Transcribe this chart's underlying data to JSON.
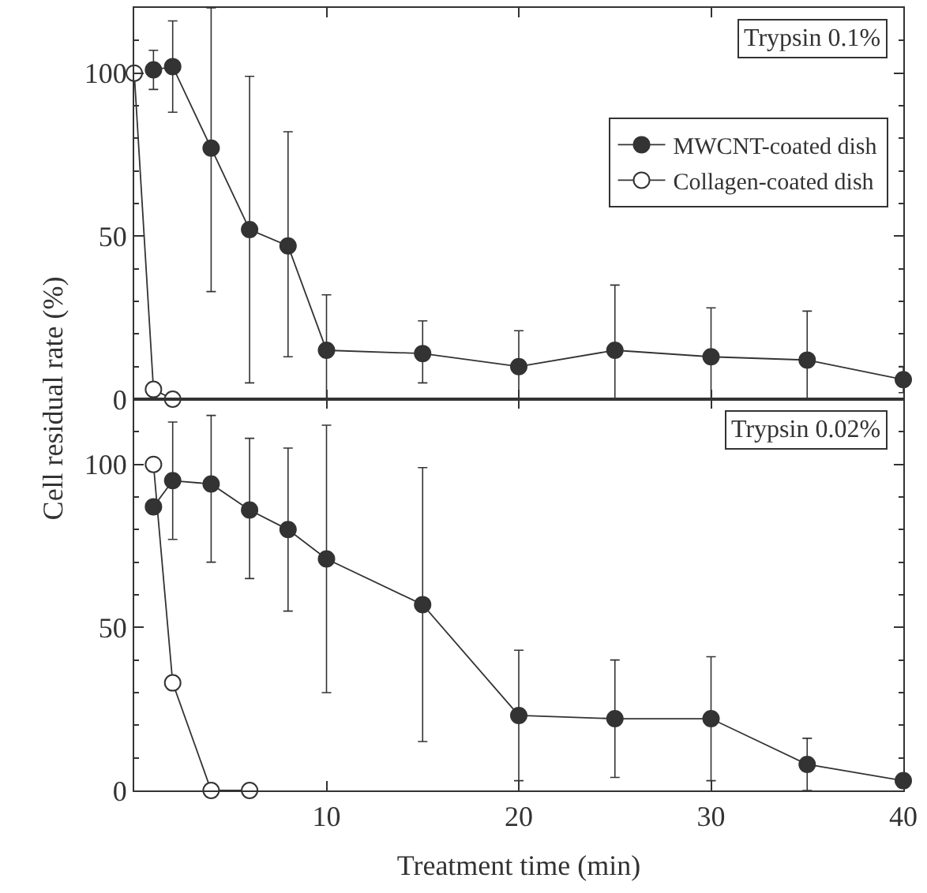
{
  "chart_data": [
    {
      "type": "line",
      "ylabel": "Cell residual rate (%)",
      "xlim": [
        0,
        40
      ],
      "xticks": [
        0,
        10,
        20,
        30,
        40
      ],
      "ylim": [
        0,
        120
      ],
      "yticks": [
        0,
        50,
        100
      ],
      "tick_labels": "y",
      "marker": "circle",
      "legend": "top right",
      "annotations": [
        "Trypsin 0.1%"
      ],
      "series": [
        {
          "name": "MWCNT-coated dish",
          "color": "#333333",
          "x": [
            1,
            2,
            4,
            6,
            8,
            10,
            15,
            20,
            25,
            30,
            35,
            40
          ],
          "values": [
            101,
            102,
            77,
            52,
            47,
            15,
            14,
            10,
            15,
            13,
            12,
            6
          ],
          "errors": [
            [
              95,
              107
            ],
            [
              88,
              116
            ],
            [
              33,
              120
            ],
            [
              5,
              99
            ],
            [
              13,
              82
            ],
            [
              0,
              32
            ],
            [
              5,
              24
            ],
            [
              0,
              21
            ],
            [
              0,
              35
            ],
            [
              0,
              28
            ],
            [
              0,
              27
            ],
            [
              2,
              10
            ]
          ]
        },
        {
          "name": "Collagen-coated dish",
          "color": "#ffffff",
          "x": [
            0,
            1,
            2
          ],
          "values": [
            100,
            3,
            0
          ]
        }
      ]
    },
    {
      "type": "line",
      "xlabel": "Treatment time (min)",
      "xlim": [
        0,
        40
      ],
      "xticks": [
        {
          "value": 0,
          "label": null
        },
        10,
        20,
        30,
        40
      ],
      "ylim": [
        0,
        120
      ],
      "yticks": [
        0,
        50,
        100
      ],
      "marker": "circle",
      "annotations": [
        "Trypsin 0.02%"
      ],
      "series": [
        {
          "color": "#333333",
          "x": [
            1,
            2,
            4,
            6,
            8,
            10,
            15,
            20,
            25,
            30,
            35,
            40
          ],
          "values": [
            87,
            95,
            94,
            86,
            80,
            71,
            57,
            23,
            22,
            22,
            8,
            3
          ],
          "errors": [
            null,
            [
              77,
              113
            ],
            [
              70,
              115
            ],
            [
              65,
              108
            ],
            [
              55,
              105
            ],
            [
              30,
              112
            ],
            [
              15,
              99
            ],
            [
              3,
              43
            ],
            [
              4,
              40
            ],
            [
              3,
              41
            ],
            [
              0,
              16
            ],
            null
          ]
        },
        {
          "color": "#ffffff",
          "x": [
            1,
            2,
            4,
            6
          ],
          "values": [
            100,
            33,
            0,
            0
          ]
        }
      ]
    }
  ]
}
